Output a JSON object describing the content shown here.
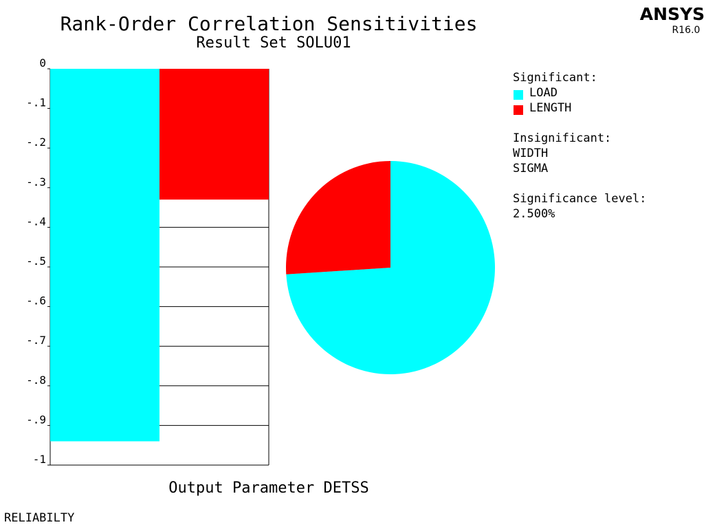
{
  "brand": {
    "name": "ANSYS",
    "version": "R16.0"
  },
  "footer_label": "RELIABILTY",
  "chart_data": {
    "type": "bar",
    "title": "Rank-Order Correlation Sensitivities",
    "subtitle": "Result Set SOLU01",
    "xlabel": "Output Parameter DETSS",
    "ylim": [
      -1,
      0
    ],
    "yticks": [
      {
        "value": 0,
        "label": "0"
      },
      {
        "value": -0.1,
        "label": "-.1"
      },
      {
        "value": -0.2,
        "label": "-.2"
      },
      {
        "value": -0.3,
        "label": "-.3"
      },
      {
        "value": -0.4,
        "label": "-.4"
      },
      {
        "value": -0.5,
        "label": "-.5"
      },
      {
        "value": -0.6,
        "label": "-.6"
      },
      {
        "value": -0.7,
        "label": "-.7"
      },
      {
        "value": -0.8,
        "label": "-.8"
      },
      {
        "value": -0.9,
        "label": "-.9"
      },
      {
        "value": -1,
        "label": "-1"
      }
    ],
    "series": [
      {
        "name": "LOAD",
        "value": -0.94,
        "color": "#00ffff"
      },
      {
        "name": "LENGTH",
        "value": -0.33,
        "color": "#ff0000"
      }
    ],
    "pie": {
      "slices": [
        {
          "name": "LOAD",
          "fraction": 0.74,
          "color": "#00ffff"
        },
        {
          "name": "LENGTH",
          "fraction": 0.26,
          "color": "#ff0000"
        }
      ]
    },
    "legend": {
      "placement": "right",
      "significant_heading": "Significant:",
      "significant": [
        {
          "label": "LOAD",
          "color": "#00ffff"
        },
        {
          "label": "LENGTH",
          "color": "#ff0000"
        }
      ],
      "insignificant_heading": "Insignificant:",
      "insignificant": [
        "WIDTH",
        "SIGMA"
      ],
      "significance_heading": "Significance level:",
      "significance_value": "2.500%"
    }
  }
}
